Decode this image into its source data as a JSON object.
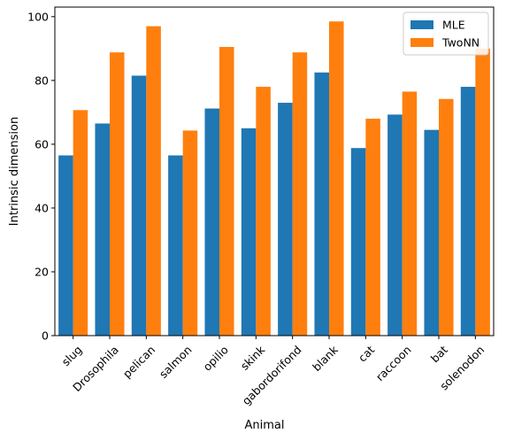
{
  "chart_data": {
    "type": "bar",
    "xlabel": "Animal",
    "ylabel": "Intrinsic dimension",
    "ylim": [
      0,
      103
    ],
    "yticks": [
      0,
      20,
      40,
      60,
      80,
      100
    ],
    "categories": [
      "slug",
      "Drosophila",
      "pelican",
      "salmon",
      "opilio",
      "skink",
      "gabordorifond",
      "blank",
      "cat",
      "raccoon",
      "bat",
      "solenodon"
    ],
    "series": [
      {
        "name": "MLE",
        "color": "#1f77b4",
        "values": [
          56.5,
          66.5,
          81.5,
          56.5,
          71.2,
          65.0,
          73.0,
          82.5,
          58.8,
          69.3,
          64.5,
          78.0
        ]
      },
      {
        "name": "TwoNN",
        "color": "#ff7f0e",
        "values": [
          70.7,
          88.8,
          97.0,
          64.3,
          90.5,
          78.0,
          88.8,
          98.5,
          68.0,
          76.5,
          74.2,
          90.0
        ]
      }
    ],
    "legend": "top-right",
    "grid": false
  }
}
